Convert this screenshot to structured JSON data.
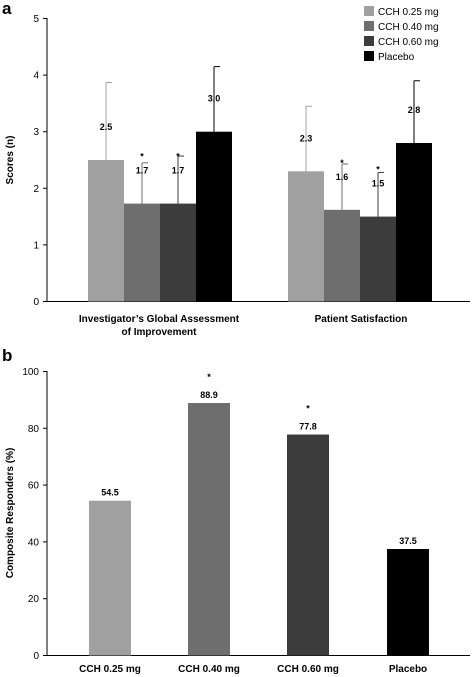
{
  "chart_data": [
    {
      "panel": "a",
      "type": "bar",
      "ylabel": "Scores (n)",
      "ylim": [
        0,
        5
      ],
      "yticks": [
        "0",
        "1",
        "2",
        "3",
        "4",
        "5"
      ],
      "categories": [
        "Investigator’s Global Assessment of Improvement",
        "Patient Satisfaction"
      ],
      "legend_position": "top-right",
      "series": [
        {
          "name": "CCH 0.25 mg",
          "color": "#a0a0a0",
          "values": [
            2.5,
            2.3
          ],
          "labels": [
            "2.5",
            "2.3"
          ],
          "error_upper": [
            3.87,
            3.45
          ],
          "significant": [
            false,
            false
          ]
        },
        {
          "name": "CCH 0.40 mg",
          "color": "#6e6e6e",
          "values": [
            1.73,
            1.62
          ],
          "labels": [
            "1.7",
            "1.6"
          ],
          "error_upper": [
            2.45,
            2.43
          ],
          "significant": [
            true,
            true
          ]
        },
        {
          "name": "CCH 0.60 mg",
          "color": "#3c3c3c",
          "values": [
            1.73,
            1.5
          ],
          "labels": [
            "1.7",
            "1.5"
          ],
          "error_upper": [
            2.57,
            2.28
          ],
          "significant": [
            true,
            true
          ]
        },
        {
          "name": "Placebo",
          "color": "#000000",
          "values": [
            3.0,
            2.8
          ],
          "labels": [
            "3.0",
            "2.8"
          ],
          "error_upper": [
            4.15,
            3.9
          ],
          "significant": [
            false,
            false
          ]
        }
      ]
    },
    {
      "panel": "b",
      "type": "bar",
      "ylabel": "Composite Responders (%)",
      "ylim": [
        0,
        100
      ],
      "yticks": [
        "0",
        "20",
        "40",
        "60",
        "80",
        "100"
      ],
      "categories": [
        "CCH 0.25 mg",
        "CCH 0.40 mg",
        "CCH 0.60 mg",
        "Placebo"
      ],
      "values": [
        54.5,
        88.9,
        77.8,
        37.5
      ],
      "labels": [
        "54.5",
        "88.9",
        "77.8",
        "37.5"
      ],
      "colors": [
        "#a0a0a0",
        "#6e6e6e",
        "#3c3c3c",
        "#000000"
      ],
      "significant": [
        false,
        true,
        true,
        false
      ]
    }
  ],
  "significance_marker": "*"
}
